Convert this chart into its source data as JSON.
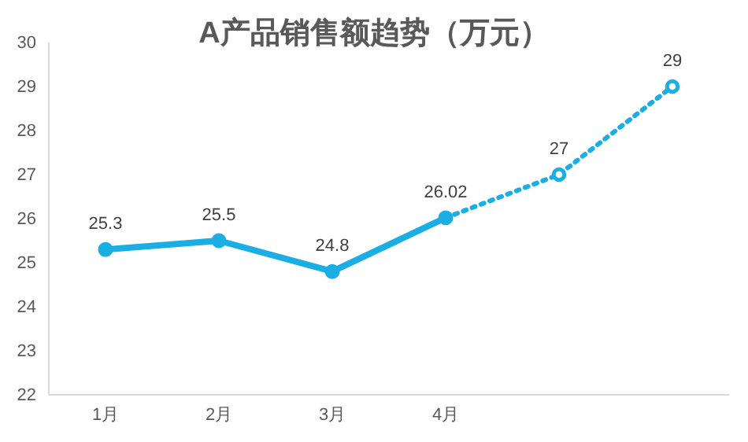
{
  "chart_data": {
    "type": "line",
    "title": "A产品销售额趋势（万元）",
    "categories": [
      "1月",
      "2月",
      "3月",
      "4月",
      null,
      null
    ],
    "series": [
      {
        "color": "#1aaee5",
        "line_style": "solid",
        "marker": "circle",
        "values": [
          25.3,
          25.5,
          24.8,
          26.02,
          null,
          null
        ],
        "value_labels": [
          "25.3",
          "25.5",
          "24.8",
          "26.02",
          null,
          null
        ]
      },
      {
        "color": "#1aaee5",
        "line_style": "dotted",
        "marker": "circle",
        "values": [
          null,
          null,
          null,
          26.02,
          27,
          29
        ],
        "value_labels": [
          null,
          null,
          null,
          null,
          "27",
          "29"
        ]
      }
    ],
    "ylim": [
      22,
      30
    ],
    "yticks": [
      22,
      23,
      24,
      25,
      26,
      27,
      28,
      29,
      30
    ],
    "grid": false
  }
}
